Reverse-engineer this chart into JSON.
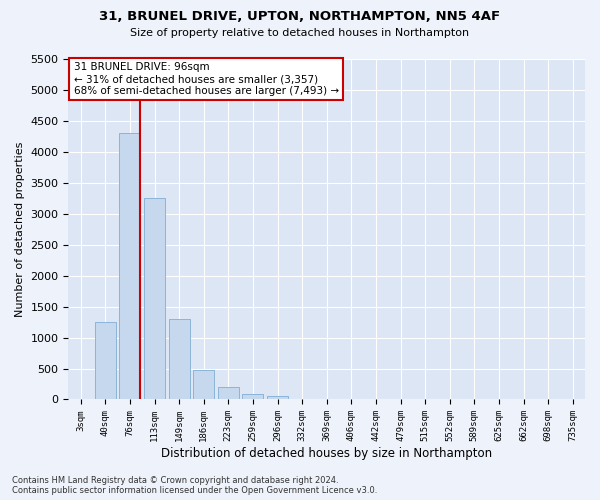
{
  "title_line1": "31, BRUNEL DRIVE, UPTON, NORTHAMPTON, NN5 4AF",
  "title_line2": "Size of property relative to detached houses in Northampton",
  "xlabel": "Distribution of detached houses by size in Northampton",
  "ylabel": "Number of detached properties",
  "footnote": "Contains HM Land Registry data © Crown copyright and database right 2024.\nContains public sector information licensed under the Open Government Licence v3.0.",
  "bar_labels": [
    "3sqm",
    "40sqm",
    "76sqm",
    "113sqm",
    "149sqm",
    "186sqm",
    "223sqm",
    "259sqm",
    "296sqm",
    "332sqm",
    "369sqm",
    "406sqm",
    "442sqm",
    "479sqm",
    "515sqm",
    "552sqm",
    "589sqm",
    "625sqm",
    "662sqm",
    "698sqm",
    "735sqm"
  ],
  "bar_values": [
    0,
    1250,
    4300,
    3250,
    1300,
    480,
    200,
    90,
    55,
    0,
    0,
    0,
    0,
    0,
    0,
    0,
    0,
    0,
    0,
    0,
    0
  ],
  "bar_color": "#c5d8ee",
  "bar_edgecolor": "#8ab4d8",
  "vline_x_idx": 2,
  "annotation_text": "31 BRUNEL DRIVE: 96sqm\n← 31% of detached houses are smaller (3,357)\n68% of semi-detached houses are larger (7,493) →",
  "annotation_box_facecolor": "#ffffff",
  "annotation_box_edgecolor": "#cc0000",
  "vline_color": "#cc0000",
  "ylim_max": 5500,
  "yticks": [
    0,
    500,
    1000,
    1500,
    2000,
    2500,
    3000,
    3500,
    4000,
    4500,
    5000,
    5500
  ],
  "background_color": "#eef2fa",
  "plot_bg_color": "#dce6f5",
  "grid_color": "#ffffff",
  "title1_fontsize": 9.5,
  "title2_fontsize": 8,
  "ylabel_fontsize": 8,
  "xlabel_fontsize": 8.5,
  "ytick_fontsize": 8,
  "xtick_fontsize": 6.5,
  "footnote_fontsize": 6,
  "annot_fontsize": 7.5
}
